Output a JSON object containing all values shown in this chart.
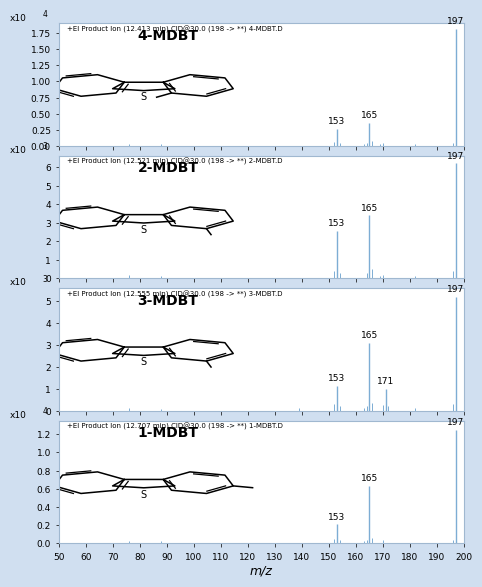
{
  "panels": [
    {
      "title": "4-MDBT",
      "header": "+EI Product Ion (12.413 min) CID@30.0 (198 -> **) 4-MDBT.D",
      "scale_label": "x10",
      "scale_exp": "4",
      "yticks": [
        0,
        0.25,
        0.5,
        0.75,
        1,
        1.25,
        1.5,
        1.75
      ],
      "ymax": 1.9,
      "peaks": [
        {
          "mz": 153,
          "intensity": 0.27,
          "label": "153"
        },
        {
          "mz": 165,
          "intensity": 0.36,
          "label": "165"
        },
        {
          "mz": 197,
          "intensity": 1.82,
          "label": "197"
        }
      ],
      "minor_peaks": [
        {
          "mz": 76,
          "intensity": 0.03
        },
        {
          "mz": 88,
          "intensity": 0.025
        },
        {
          "mz": 152,
          "intensity": 0.06
        },
        {
          "mz": 154,
          "intensity": 0.05
        },
        {
          "mz": 163,
          "intensity": 0.03
        },
        {
          "mz": 164,
          "intensity": 0.04
        },
        {
          "mz": 166,
          "intensity": 0.07
        },
        {
          "mz": 169,
          "intensity": 0.03
        },
        {
          "mz": 170,
          "intensity": 0.04
        },
        {
          "mz": 182,
          "intensity": 0.025
        },
        {
          "mz": 196,
          "intensity": 0.05
        }
      ],
      "methyl_pos": "4"
    },
    {
      "title": "2-MDBT",
      "header": "+EI Product Ion (12.521 min) CID@30.0 (198 -> **) 2-MDBT.D",
      "scale_label": "x10",
      "scale_exp": "3",
      "yticks": [
        0,
        1,
        2,
        3,
        4,
        5,
        6
      ],
      "ymax": 6.6,
      "peaks": [
        {
          "mz": 153,
          "intensity": 2.55,
          "label": "153"
        },
        {
          "mz": 165,
          "intensity": 3.4,
          "label": "165"
        },
        {
          "mz": 197,
          "intensity": 6.2,
          "label": "197"
        }
      ],
      "minor_peaks": [
        {
          "mz": 76,
          "intensity": 0.2
        },
        {
          "mz": 88,
          "intensity": 0.15
        },
        {
          "mz": 152,
          "intensity": 0.4
        },
        {
          "mz": 154,
          "intensity": 0.3
        },
        {
          "mz": 164,
          "intensity": 0.3
        },
        {
          "mz": 166,
          "intensity": 0.5
        },
        {
          "mz": 169,
          "intensity": 0.15
        },
        {
          "mz": 170,
          "intensity": 0.2
        },
        {
          "mz": 182,
          "intensity": 0.15
        },
        {
          "mz": 196,
          "intensity": 0.4
        }
      ],
      "methyl_pos": "2"
    },
    {
      "title": "3-MDBT",
      "header": "+EI Product Ion (12.555 min) CID@30.0 (198 -> **) 3-MDBT.D",
      "scale_label": "x10",
      "scale_exp": "3",
      "yticks": [
        0,
        1,
        2,
        3,
        4,
        5
      ],
      "ymax": 5.6,
      "peaks": [
        {
          "mz": 153,
          "intensity": 1.15,
          "label": "153"
        },
        {
          "mz": 165,
          "intensity": 3.1,
          "label": "165"
        },
        {
          "mz": 171,
          "intensity": 1.0,
          "label": "171"
        },
        {
          "mz": 197,
          "intensity": 5.2,
          "label": "197"
        }
      ],
      "minor_peaks": [
        {
          "mz": 76,
          "intensity": 0.15
        },
        {
          "mz": 88,
          "intensity": 0.1
        },
        {
          "mz": 139,
          "intensity": 0.15
        },
        {
          "mz": 152,
          "intensity": 0.3
        },
        {
          "mz": 154,
          "intensity": 0.22
        },
        {
          "mz": 163,
          "intensity": 0.15
        },
        {
          "mz": 164,
          "intensity": 0.2
        },
        {
          "mz": 166,
          "intensity": 0.35
        },
        {
          "mz": 170,
          "intensity": 0.25
        },
        {
          "mz": 172,
          "intensity": 0.2
        },
        {
          "mz": 182,
          "intensity": 0.12
        },
        {
          "mz": 196,
          "intensity": 0.3
        }
      ],
      "methyl_pos": "3"
    },
    {
      "title": "1-MDBT",
      "header": "+EI Product Ion (12.707 min) CID@30.0 (198 -> **) 1-MDBT.D",
      "scale_label": "x10",
      "scale_exp": "4",
      "yticks": [
        0,
        0.2,
        0.4,
        0.6,
        0.8,
        1.0,
        1.2
      ],
      "ymax": 1.35,
      "peaks": [
        {
          "mz": 153,
          "intensity": 0.21,
          "label": "153"
        },
        {
          "mz": 165,
          "intensity": 0.63,
          "label": "165"
        },
        {
          "mz": 197,
          "intensity": 1.25,
          "label": "197"
        }
      ],
      "minor_peaks": [
        {
          "mz": 76,
          "intensity": 0.025
        },
        {
          "mz": 88,
          "intensity": 0.02
        },
        {
          "mz": 152,
          "intensity": 0.045
        },
        {
          "mz": 154,
          "intensity": 0.035
        },
        {
          "mz": 163,
          "intensity": 0.025
        },
        {
          "mz": 164,
          "intensity": 0.04
        },
        {
          "mz": 166,
          "intensity": 0.055
        },
        {
          "mz": 170,
          "intensity": 0.03
        },
        {
          "mz": 196,
          "intensity": 0.035
        }
      ],
      "methyl_pos": "1"
    }
  ],
  "xlabel": "m/z",
  "xlim": [
    50,
    200
  ],
  "xticks": [
    50,
    60,
    70,
    80,
    90,
    100,
    110,
    120,
    130,
    140,
    150,
    160,
    170,
    180,
    190,
    200
  ],
  "bg_color": "#d0dff0",
  "plot_bg": "#ffffff",
  "bar_color": "#7dadd4"
}
